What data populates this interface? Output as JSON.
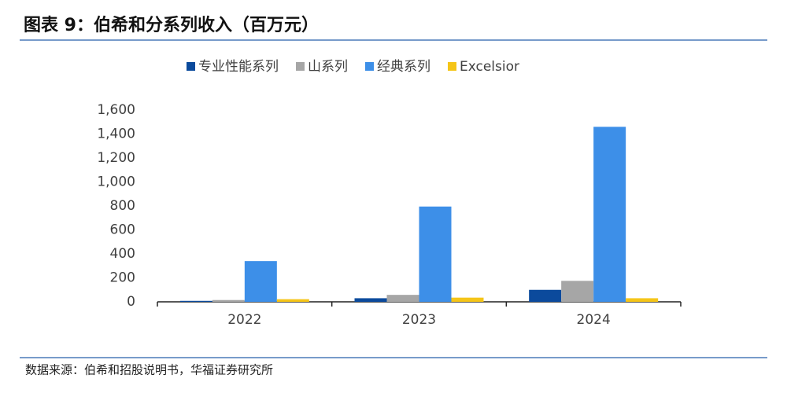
{
  "chart_data": {
    "type": "bar",
    "title": "图表 9：伯希和分系列收入（百万元）",
    "source": "数据来源：伯希和招股说明书，华福证券研究所",
    "categories": [
      "2022",
      "2023",
      "2024"
    ],
    "series": [
      {
        "name": "专业性能系列",
        "color": "#0b4a9c",
        "values": [
          8,
          30,
          100
        ]
      },
      {
        "name": "山系列",
        "color": "#a6a6a6",
        "values": [
          15,
          58,
          175
        ]
      },
      {
        "name": "经典系列",
        "color": "#3d8fe8",
        "values": [
          340,
          795,
          1460
        ]
      },
      {
        "name": "Excelsior",
        "color": "#f5c518",
        "values": [
          22,
          35,
          30
        ]
      }
    ],
    "ylim": [
      0,
      1600
    ],
    "yticks": [
      0,
      200,
      400,
      600,
      800,
      {
        "value": 1000,
        "label": "1,000"
      },
      {
        "value": 1200,
        "label": "1,200"
      },
      {
        "value": 1400,
        "label": "1,400"
      },
      {
        "value": 1600,
        "label": "1,600"
      }
    ],
    "legend": "top"
  }
}
